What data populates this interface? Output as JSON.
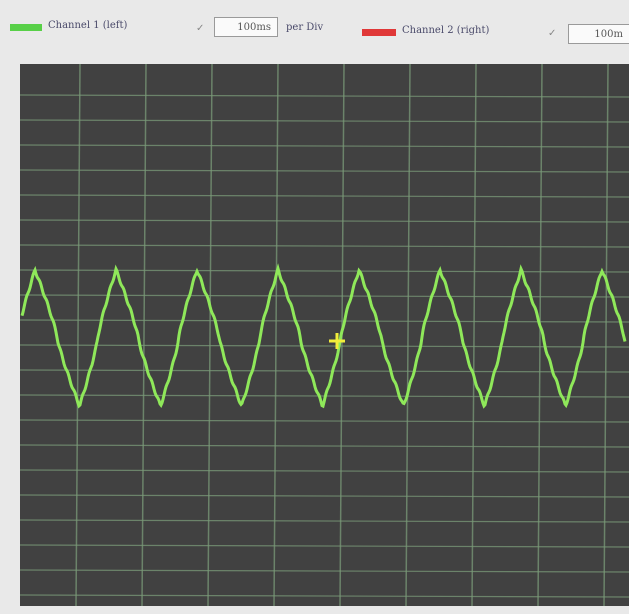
{
  "toolbar": {
    "channel1": {
      "label": "Channel 1 (left)",
      "check": "✓",
      "timebase": "100ms",
      "unit": "per Div"
    },
    "channel2": {
      "label": "Channel 2 (right)",
      "check": "✓",
      "timebase": "100m"
    }
  }
}
